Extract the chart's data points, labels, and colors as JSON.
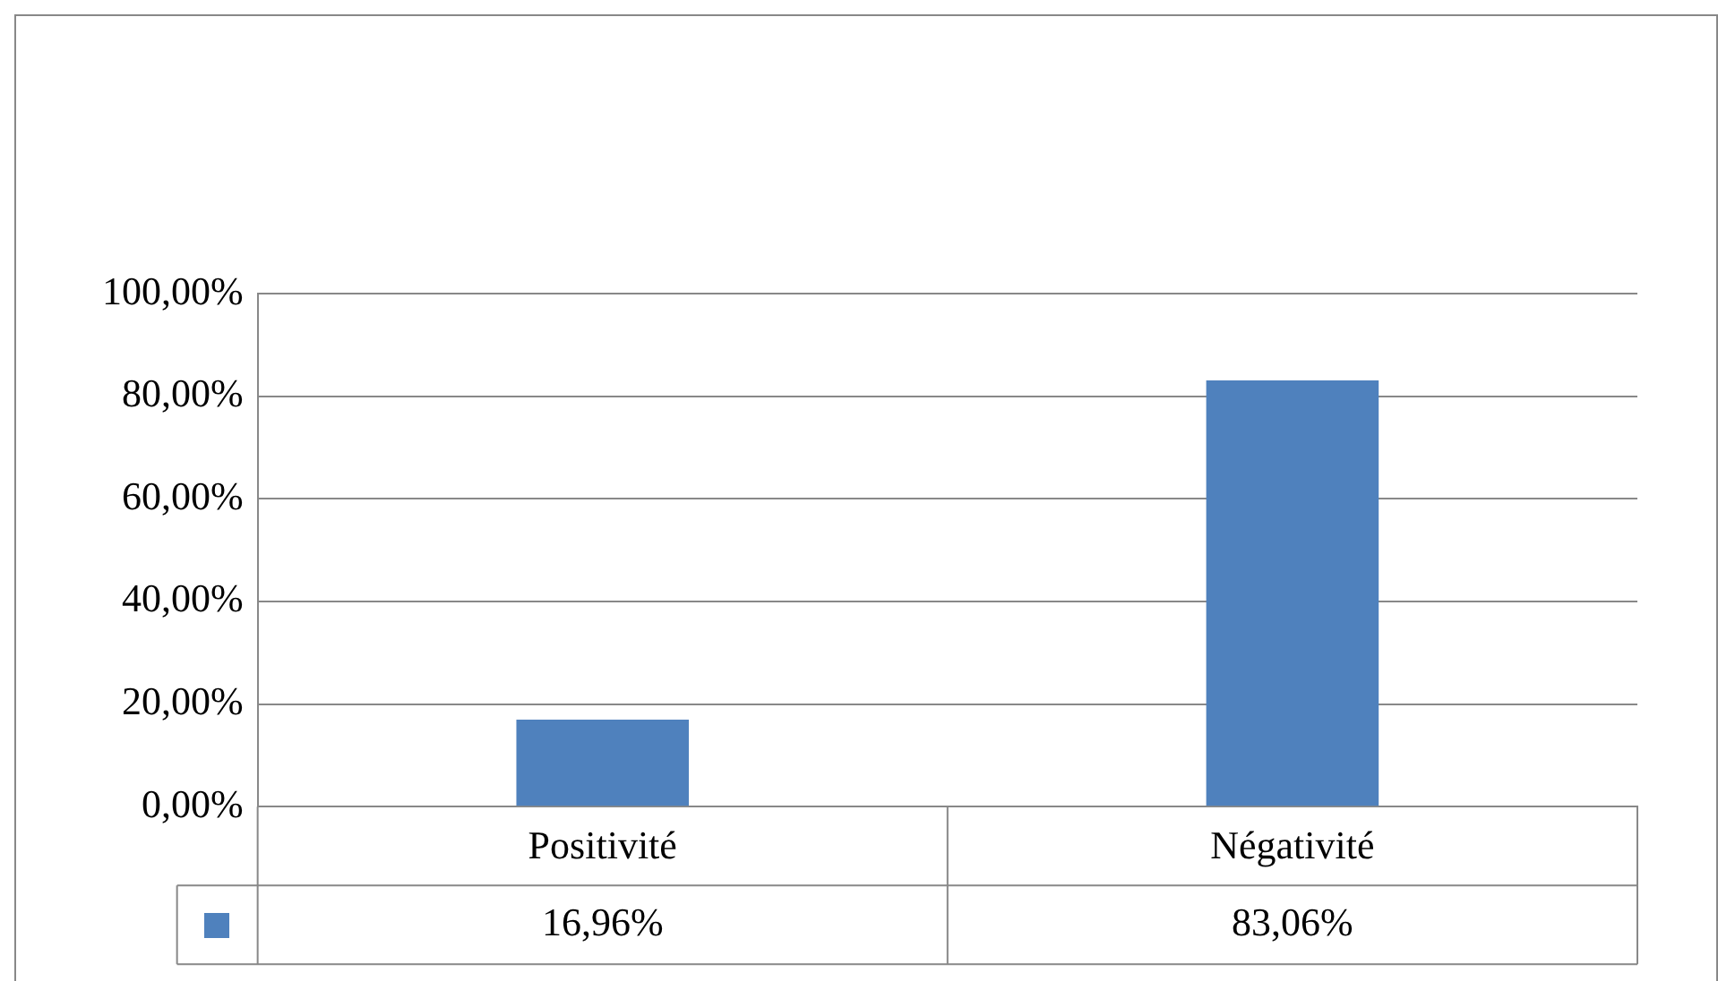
{
  "chart_data": {
    "type": "bar",
    "categories": [
      "Positivité",
      "Négativité"
    ],
    "series": [
      {
        "color": "#4f81bd",
        "values": [
          16.96,
          83.06
        ],
        "value_labels": [
          "16,96%",
          "83,06%"
        ]
      }
    ],
    "ylim": [
      0,
      100
    ],
    "yticks": [
      {
        "value": 0,
        "label": "0,00%"
      },
      {
        "value": 20,
        "label": "20,00%"
      },
      {
        "value": 40,
        "label": "40,00%"
      },
      {
        "value": 60,
        "label": "60,00%"
      },
      {
        "value": 80,
        "label": "80,00%"
      },
      {
        "value": 100,
        "label": "100,00%"
      }
    ],
    "grid": "y",
    "legend": false
  }
}
